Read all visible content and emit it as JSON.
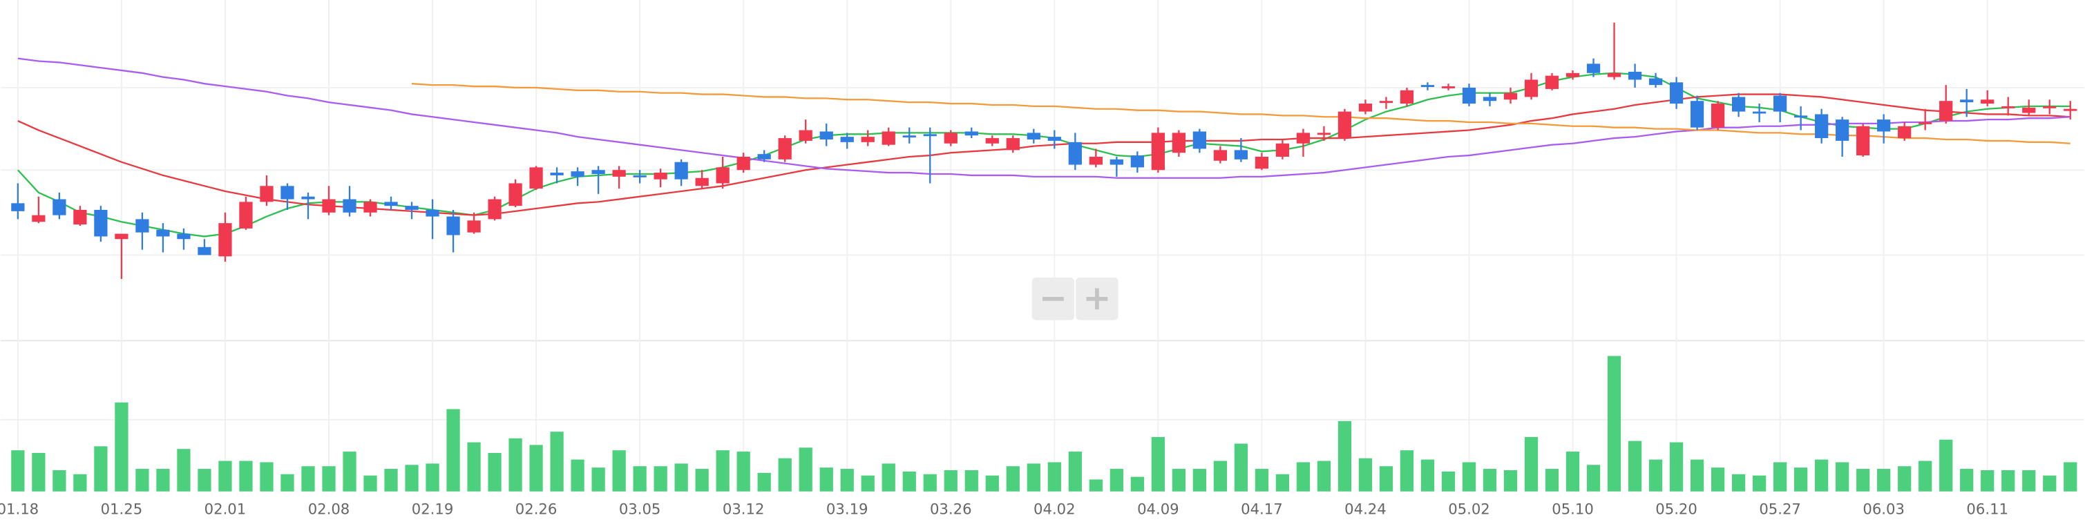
{
  "chart_data": [
    {
      "type": "candlestick",
      "up_color": "#f0384e",
      "down_color": "#2f7de1",
      "ylim": [
        0,
        250
      ],
      "yticks": [
        58,
        122,
        184
      ],
      "grid": true,
      "open": [
        97,
        83,
        100,
        81,
        92,
        70,
        85,
        77,
        74,
        64,
        57,
        78,
        98,
        110,
        102,
        90,
        100,
        90,
        98,
        95,
        92,
        87,
        75,
        85,
        95,
        108,
        120,
        121,
        122,
        117,
        118,
        115,
        128,
        110,
        112,
        122,
        134,
        130,
        144,
        151,
        147,
        143,
        141,
        148,
        149,
        142,
        151,
        142,
        137,
        150,
        147,
        143,
        126,
        130,
        133,
        122,
        135,
        151,
        129,
        137,
        123,
        132,
        142,
        149,
        146,
        166,
        173,
        172,
        186,
        184,
        184,
        177,
        175,
        177,
        183,
        192,
        202,
        192,
        196,
        191,
        188,
        174,
        154,
        177,
        166,
        178,
        163,
        164,
        160,
        133,
        160,
        146,
        157,
        159,
        175,
        172,
        170,
        165,
        170,
        168
      ],
      "high": [
        112,
        102,
        105,
        95,
        95,
        74,
        90,
        82,
        78,
        70,
        90,
        102,
        118,
        112,
        105,
        110,
        110,
        100,
        102,
        98,
        100,
        92,
        90,
        102,
        115,
        125,
        124,
        124,
        125,
        125,
        122,
        123,
        130,
        122,
        132,
        135,
        137,
        148,
        160,
        157,
        150,
        152,
        154,
        154,
        154,
        152,
        154,
        148,
        148,
        153,
        152,
        150,
        138,
        132,
        136,
        154,
        152,
        153,
        140,
        146,
        135,
        145,
        153,
        155,
        168,
        175,
        177,
        184,
        188,
        187,
        187,
        180,
        184,
        195,
        195,
        197,
        206,
        233,
        202,
        195,
        192,
        178,
        174,
        180,
        172,
        180,
        170,
        168,
        162,
        157,
        164,
        158,
        168,
        186,
        183,
        182,
        177,
        175,
        175,
        174
      ],
      "low": [
        85,
        82,
        85,
        80,
        68,
        40,
        62,
        60,
        62,
        58,
        53,
        77,
        95,
        92,
        85,
        88,
        87,
        87,
        92,
        85,
        70,
        60,
        74,
        84,
        94,
        107,
        112,
        110,
        104,
        108,
        112,
        109,
        110,
        108,
        108,
        120,
        128,
        128,
        142,
        140,
        138,
        140,
        140,
        142,
        112,
        140,
        146,
        140,
        135,
        142,
        138,
        122,
        124,
        117,
        120,
        120,
        132,
        135,
        127,
        128,
        122,
        130,
        132,
        144,
        144,
        164,
        168,
        170,
        182,
        182,
        170,
        170,
        172,
        175,
        182,
        190,
        192,
        190,
        184,
        184,
        168,
        152,
        152,
        162,
        158,
        158,
        152,
        142,
        132,
        132,
        142,
        144,
        152,
        157,
        162,
        170,
        163,
        163,
        164,
        160
      ],
      "close": [
        91,
        88,
        88,
        92,
        72,
        74,
        75,
        72,
        70,
        58,
        82,
        98,
        110,
        100,
        100,
        100,
        90,
        98,
        95,
        92,
        87,
        73,
        84,
        100,
        112,
        124,
        118,
        117,
        119,
        122,
        117,
        120,
        115,
        116,
        124,
        132,
        130,
        146,
        152,
        145,
        143,
        147,
        151,
        147,
        148,
        150,
        148,
        146,
        146,
        145,
        144,
        126,
        132,
        126,
        124,
        150,
        150,
        138,
        137,
        130,
        132,
        142,
        150,
        150,
        166,
        172,
        174,
        182,
        185,
        185,
        172,
        174,
        180,
        190,
        193,
        195,
        195,
        195,
        190,
        186,
        172,
        154,
        172,
        166,
        165,
        166,
        162,
        146,
        144,
        155,
        151,
        155,
        158,
        174,
        173,
        175,
        170,
        169,
        170,
        168
      ],
      "lines": [
        {
          "color": "#2dbf4f",
          "values": [
            122,
            105,
            98,
            90,
            87,
            83,
            80,
            77,
            74,
            72,
            74,
            80,
            87,
            93,
            97,
            98,
            98,
            98,
            96,
            94,
            92,
            90,
            88,
            92,
            100,
            108,
            113,
            117,
            118,
            119,
            119,
            119,
            120,
            121,
            124,
            128,
            133,
            139,
            145,
            148,
            149,
            149,
            150,
            150,
            150,
            150,
            150,
            149,
            149,
            148,
            146,
            141,
            137,
            133,
            132,
            134,
            138,
            142,
            141,
            140,
            136,
            137,
            140,
            145,
            152,
            160,
            166,
            170,
            175,
            178,
            180,
            180,
            180,
            184,
            189,
            192,
            194,
            195,
            194,
            192,
            184,
            176,
            173,
            170,
            169,
            167,
            162,
            158,
            155,
            154,
            153,
            153,
            157,
            162,
            166,
            168,
            169,
            170,
            170,
            170
          ]
        },
        {
          "color": "#e8393f",
          "values": [
            159,
            152,
            146,
            140,
            134,
            128,
            123,
            118,
            114,
            110,
            106,
            103,
            100,
            98,
            96,
            95,
            94,
            93,
            92,
            91,
            90,
            89,
            88,
            89,
            91,
            93,
            95,
            97,
            98,
            100,
            102,
            104,
            106,
            108,
            110,
            113,
            116,
            119,
            122,
            124,
            126,
            128,
            130,
            132,
            133,
            135,
            136,
            137,
            138,
            140,
            141,
            142,
            142,
            143,
            143,
            143,
            144,
            144,
            144,
            144,
            145,
            145,
            146,
            146,
            146,
            147,
            148,
            149,
            150,
            151,
            152,
            154,
            156,
            159,
            161,
            164,
            166,
            168,
            171,
            173,
            175,
            177,
            178,
            179,
            179,
            179,
            178,
            177,
            175,
            173,
            171,
            169,
            167,
            166,
            165,
            164,
            164,
            163,
            163,
            162
          ]
        },
        {
          "color": "#a95cf0",
          "values": [
            206,
            204,
            203,
            201,
            199,
            197,
            195,
            192,
            190,
            187,
            185,
            183,
            181,
            178,
            176,
            173,
            171,
            169,
            167,
            164,
            162,
            160,
            158,
            156,
            154,
            152,
            150,
            147,
            145,
            143,
            141,
            139,
            137,
            135,
            133,
            131,
            129,
            127,
            125,
            123,
            122,
            121,
            120,
            120,
            119,
            119,
            118,
            118,
            118,
            117,
            117,
            117,
            117,
            116,
            116,
            116,
            116,
            116,
            116,
            117,
            117,
            118,
            119,
            120,
            122,
            124,
            126,
            128,
            130,
            132,
            133,
            135,
            137,
            139,
            141,
            142,
            144,
            146,
            147,
            149,
            151,
            152,
            154,
            154,
            155,
            155,
            156,
            156,
            157,
            157,
            157,
            158,
            158,
            159,
            159,
            160,
            160,
            161,
            161,
            162
          ]
        },
        {
          "color": "#f39a3a",
          "values": [
            null,
            null,
            null,
            null,
            null,
            null,
            null,
            null,
            null,
            null,
            null,
            null,
            null,
            null,
            null,
            null,
            null,
            null,
            null,
            187,
            186,
            186,
            185,
            185,
            184,
            184,
            183,
            182,
            182,
            181,
            181,
            180,
            180,
            179,
            179,
            178,
            177,
            177,
            176,
            176,
            175,
            175,
            174,
            173,
            173,
            172,
            172,
            171,
            171,
            170,
            170,
            169,
            168,
            168,
            167,
            167,
            166,
            166,
            165,
            164,
            164,
            163,
            163,
            162,
            162,
            161,
            161,
            160,
            159,
            159,
            158,
            158,
            157,
            157,
            156,
            155,
            155,
            154,
            154,
            153,
            153,
            152,
            152,
            151,
            150,
            150,
            149,
            149,
            148,
            148,
            147,
            146,
            146,
            145,
            145,
            144,
            144,
            143,
            143,
            142
          ]
        }
      ]
    },
    {
      "type": "bar",
      "color": "#4cd07d",
      "ylim": [
        0,
        108
      ],
      "yticks": [
        54
      ],
      "grid": true,
      "categories": [
        "01.18",
        null,
        null,
        null,
        null,
        "01.25",
        null,
        null,
        null,
        null,
        "02.01",
        null,
        null,
        null,
        null,
        "02.08",
        null,
        null,
        null,
        null,
        "02.19",
        null,
        null,
        null,
        null,
        "02.26",
        null,
        null,
        null,
        null,
        "03.05",
        null,
        null,
        null,
        null,
        "03.12",
        null,
        null,
        null,
        null,
        "03.19",
        null,
        null,
        null,
        null,
        "03.26",
        null,
        null,
        null,
        null,
        "04.02",
        null,
        null,
        null,
        null,
        "04.09",
        null,
        null,
        null,
        null,
        "04.17",
        null,
        null,
        null,
        null,
        "04.24",
        null,
        null,
        null,
        null,
        "05.02",
        null,
        null,
        null,
        null,
        "05.10",
        null,
        null,
        null,
        null,
        "05.20",
        null,
        null,
        null,
        null,
        "05.27",
        null,
        null,
        null,
        null,
        "06.03",
        null,
        null,
        null,
        null,
        "06.11",
        null,
        null,
        null,
        null
      ],
      "values": [
        31,
        29,
        16,
        13,
        34,
        67,
        17,
        17,
        32,
        17,
        23,
        23,
        22,
        13,
        19,
        19,
        30,
        12,
        17,
        20,
        21,
        62,
        37,
        29,
        40,
        35,
        45,
        24,
        18,
        31,
        19,
        19,
        21,
        17,
        31,
        30,
        14,
        25,
        33,
        18,
        17,
        12,
        21,
        15,
        13,
        16,
        16,
        12,
        19,
        21,
        22,
        30,
        9,
        17,
        11,
        41,
        17,
        17,
        23,
        36,
        17,
        13,
        22,
        23,
        53,
        25,
        19,
        31,
        24,
        15,
        22,
        17,
        16,
        41,
        17,
        30,
        20,
        102,
        38,
        24,
        37,
        24,
        18,
        13,
        12,
        22,
        18,
        24,
        22,
        17,
        17,
        19,
        23,
        39,
        17,
        16,
        16,
        16,
        12,
        22
      ]
    }
  ]
}
